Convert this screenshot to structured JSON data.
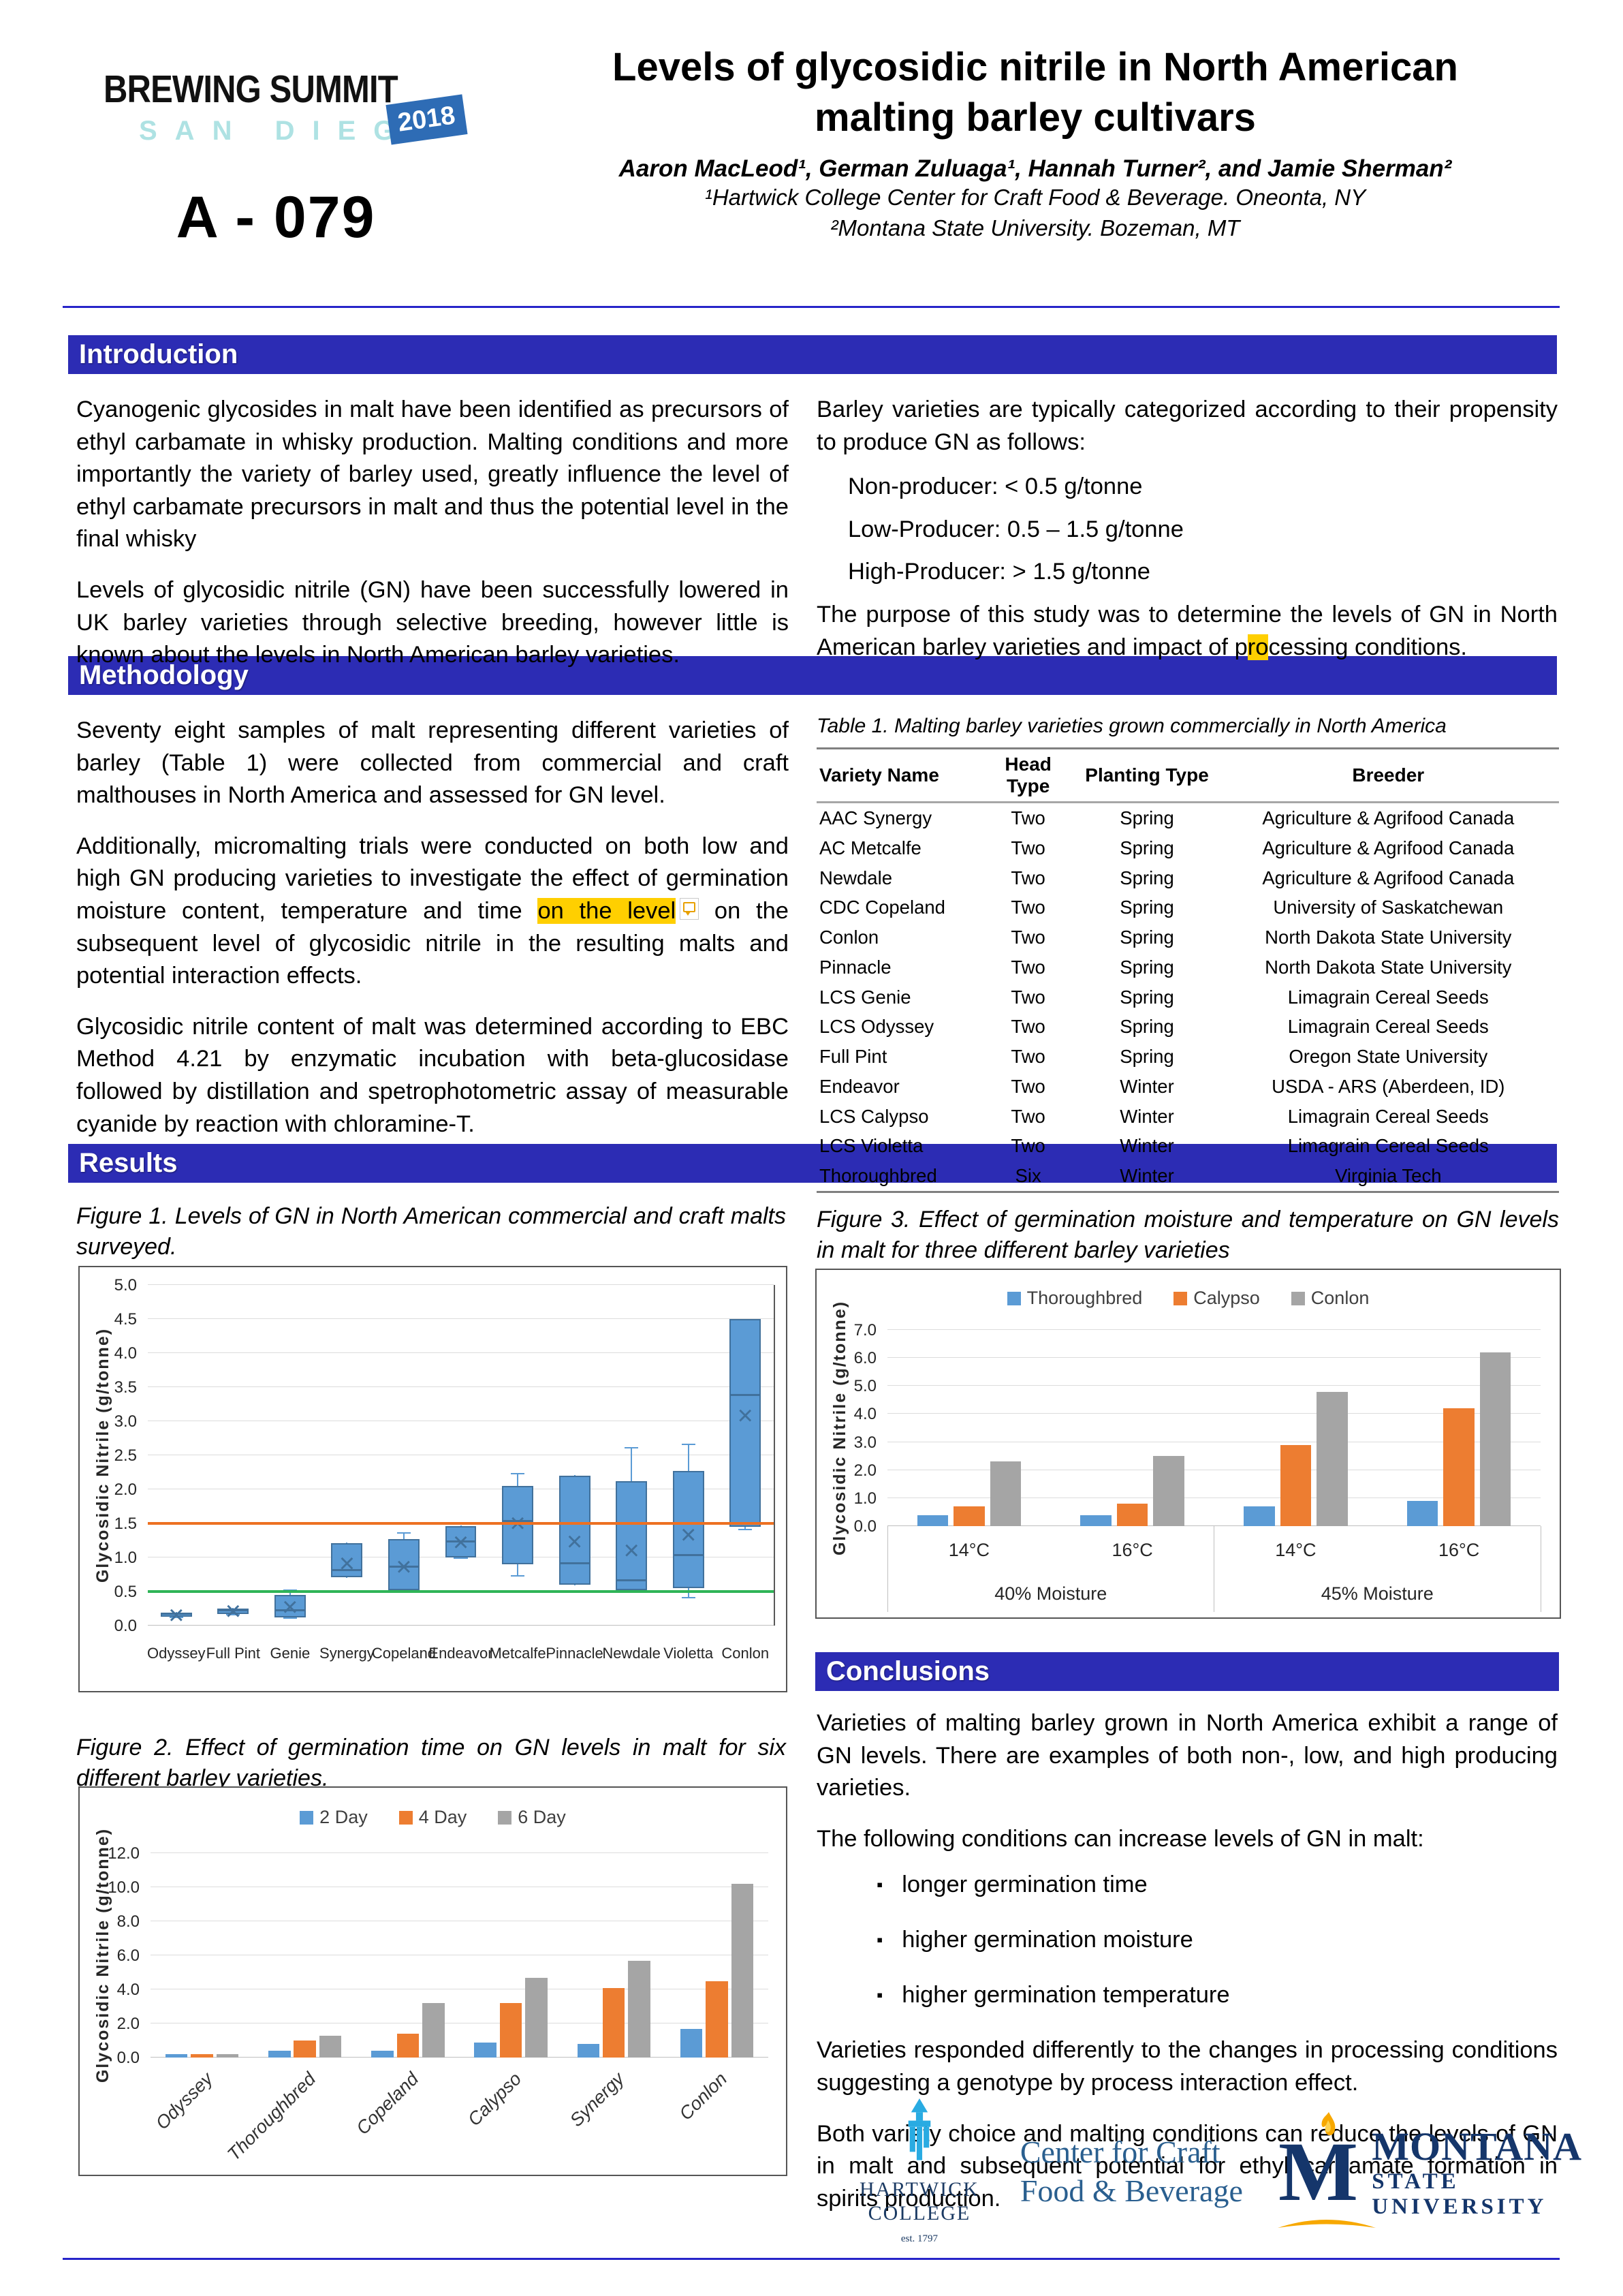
{
  "header": {
    "logo_line1": "BREWING SUMMIT",
    "logo_line2": "SAN DIEGO",
    "logo_year": "2018",
    "poster_number": "A - 079",
    "title_line1": "Levels of glycosidic nitrile in North American",
    "title_line2": "malting barley cultivars",
    "authors": "Aaron MacLeod¹, German Zuluaga¹, Hannah Turner², and Jamie Sherman²",
    "affiliation1": "¹Hartwick College Center for Craft Food & Beverage. Oneonta, NY",
    "affiliation2": "²Montana State University. Bozeman, MT"
  },
  "sections": {
    "introduction": "Introduction",
    "methodology": "Methodology",
    "results": "Results",
    "conclusions": "Conclusions"
  },
  "introduction": {
    "left_p1": "Cyanogenic glycosides in malt have been identified as precursors of ethyl carbamate in whisky production. Malting conditions and more importantly the variety of barley used, greatly influence the level of ethyl carbamate precursors in malt and thus the potential level in the final whisky",
    "left_p2": "Levels of glycosidic nitrile (GN) have been successfully lowered in UK barley varieties through selective breeding, however little is known about the levels in North American barley varieties.",
    "right_p1": "Barley varieties are typically categorized according to their propensity to produce GN as follows:",
    "right_items": [
      "Non-producer: < 0.5 g/tonne",
      "Low-Producer: 0.5 – 1.5 g/tonne",
      "High-Producer: > 1.5 g/tonne"
    ],
    "right_p2_pre": "The purpose of this study was to determine the levels of GN in North American barley varieties and impact of p",
    "right_p2_hl": "ro",
    "right_p2_post": "cessing conditions."
  },
  "methodology": {
    "p1": "Seventy eight samples of malt representing different varieties of barley (Table 1) were collected from commercial and craft malthouses in North America and assessed for GN level.",
    "p2_pre": "Additionally, micromalting trials were conducted on both low and high GN producing varieties to investigate the effect of germination moisture content, temperature and time ",
    "p2_hl": "on the level",
    "p2_post": " on the subsequent level of glycosidic nitrile in the resulting malts and potential interaction effects.",
    "p3": "Glycosidic nitrile content of malt was determined according to EBC Method 4.21 by enzymatic incubation with beta-glucosidase followed by distillation and spetrophotometric assay of measurable cyanide by reaction with chloramine-T."
  },
  "table1": {
    "caption": "Table 1. Malting barley varieties grown commercially in North America",
    "headers": [
      "Variety Name",
      "Head Type",
      "Planting Type",
      "Breeder"
    ],
    "rows": [
      [
        "AAC Synergy",
        "Two",
        "Spring",
        "Agriculture & Agrifood Canada"
      ],
      [
        "AC Metcalfe",
        "Two",
        "Spring",
        "Agriculture & Agrifood Canada"
      ],
      [
        "Newdale",
        "Two",
        "Spring",
        "Agriculture & Agrifood Canada"
      ],
      [
        "CDC Copeland",
        "Two",
        "Spring",
        "University of Saskatchewan"
      ],
      [
        "Conlon",
        "Two",
        "Spring",
        "North Dakota State University"
      ],
      [
        "Pinnacle",
        "Two",
        "Spring",
        "North Dakota State University"
      ],
      [
        "LCS Genie",
        "Two",
        "Spring",
        "Limagrain Cereal Seeds"
      ],
      [
        "LCS Odyssey",
        "Two",
        "Spring",
        "Limagrain Cereal Seeds"
      ],
      [
        "Full Pint",
        "Two",
        "Spring",
        "Oregon State University"
      ],
      [
        "Endeavor",
        "Two",
        "Winter",
        "USDA - ARS (Aberdeen, ID)"
      ],
      [
        "LCS Calypso",
        "Two",
        "Winter",
        "Limagrain Cereal Seeds"
      ],
      [
        "LCS Violetta",
        "Two",
        "Winter",
        "Limagrain Cereal Seeds"
      ],
      [
        "Thoroughbred",
        "Six",
        "Winter",
        "Virginia Tech"
      ]
    ]
  },
  "figures": {
    "fig1_caption": "Figure 1. Levels of GN in North American commercial and craft malts surveyed.",
    "fig2_caption": "Figure 2. Effect of germination time on GN levels in malt for six different barley varieties.",
    "fig3_caption": "Figure 3. Effect of germination moisture and temperature on GN levels in malt for three different barley varieties"
  },
  "chart_data": [
    {
      "id": "fig1",
      "type": "boxplot",
      "title": "Levels of GN in North American commercial and craft malts surveyed",
      "ylabel": "Glycosidic Nitrile (g/tonne)",
      "ylim": [
        0,
        5.0
      ],
      "ytick_step": 0.5,
      "grid": true,
      "legend_position": "none",
      "reference_lines": [
        {
          "y": 1.5,
          "color": "#ED7022",
          "meaning": "high-producer threshold"
        },
        {
          "y": 0.5,
          "color": "#2FB457",
          "meaning": "non-producer threshold"
        }
      ],
      "categories": [
        "Odyssey",
        "Full Pint",
        "Genie",
        "Synergy",
        "Copeland",
        "Endeavor",
        "Metcalfe",
        "Pinnacle",
        "Newdale",
        "Violetta",
        "Conlon"
      ],
      "boxes": [
        {
          "lo": 0.11,
          "q1": 0.13,
          "med": 0.16,
          "q3": 0.19,
          "hi": 0.2,
          "mean": 0.15
        },
        {
          "lo": 0.15,
          "q1": 0.17,
          "med": 0.21,
          "q3": 0.25,
          "hi": 0.26,
          "mean": 0.21
        },
        {
          "lo": 0.1,
          "q1": 0.12,
          "med": 0.21,
          "q3": 0.45,
          "hi": 0.51,
          "mean": 0.27
        },
        {
          "lo": 0.7,
          "q1": 0.71,
          "med": 0.8,
          "q3": 1.21,
          "hi": 1.22,
          "mean": 0.91
        },
        {
          "lo": 0.48,
          "q1": 0.52,
          "med": 0.85,
          "q3": 1.27,
          "hi": 1.35,
          "mean": 0.86
        },
        {
          "lo": 0.98,
          "q1": 1.0,
          "med": 1.22,
          "q3": 1.46,
          "hi": 1.47,
          "mean": 1.22
        },
        {
          "lo": 0.72,
          "q1": 0.9,
          "med": 1.52,
          "q3": 2.05,
          "hi": 2.22,
          "mean": 1.5
        },
        {
          "lo": 0.59,
          "q1": 0.6,
          "med": 0.9,
          "q3": 2.2,
          "hi": 2.21,
          "mean": 1.23
        },
        {
          "lo": 0.51,
          "q1": 0.52,
          "med": 0.65,
          "q3": 2.12,
          "hi": 2.6,
          "mean": 1.1
        },
        {
          "lo": 0.4,
          "q1": 0.55,
          "med": 1.02,
          "q3": 2.27,
          "hi": 2.65,
          "mean": 1.33
        },
        {
          "lo": 1.4,
          "q1": 1.45,
          "med": 3.37,
          "q3": 4.5,
          "hi": 4.5,
          "mean": 3.08
        }
      ]
    },
    {
      "id": "fig2",
      "type": "bar",
      "title": "Effect of germination time on GN levels in malt for six barley varieties",
      "ylabel": "Glycosidic Nitrile (g/tonne)",
      "ylim": [
        0,
        12
      ],
      "ytick_step": 2,
      "grid": true,
      "legend_position": "top",
      "categories": [
        "Odyssey",
        "Thoroughbred",
        "Copeland",
        "Calypso",
        "Synergy",
        "Conlon"
      ],
      "series": [
        {
          "name": "2 Day",
          "color": "#5B9BD5",
          "values": [
            0.2,
            0.4,
            0.4,
            0.9,
            0.8,
            1.7
          ]
        },
        {
          "name": "4 Day",
          "color": "#ED7D31",
          "values": [
            0.2,
            1.0,
            1.4,
            3.2,
            4.1,
            4.5
          ]
        },
        {
          "name": "6 Day",
          "color": "#A5A5A5",
          "values": [
            0.2,
            1.3,
            3.2,
            4.7,
            5.7,
            10.2
          ]
        }
      ]
    },
    {
      "id": "fig3",
      "type": "bar",
      "title": "Effect of germination moisture and temperature on GN levels in malt for three barley varieties",
      "ylabel": "Glycosidic Nitrile (g/tonne)",
      "ylim": [
        0,
        7
      ],
      "ytick_step": 1,
      "grid": true,
      "legend_position": "top",
      "categories": [
        "14°C",
        "16°C",
        "14°C",
        "16°C"
      ],
      "category_groups": [
        {
          "label": "40% Moisture",
          "span": [
            0,
            1
          ]
        },
        {
          "label": "45% Moisture",
          "span": [
            2,
            3
          ]
        }
      ],
      "series": [
        {
          "name": "Thoroughbred",
          "color": "#5B9BD5",
          "values": [
            0.4,
            0.4,
            0.7,
            0.9
          ]
        },
        {
          "name": "Calypso",
          "color": "#ED7D31",
          "values": [
            0.7,
            0.8,
            2.9,
            4.2
          ]
        },
        {
          "name": "Conlon",
          "color": "#A5A5A5",
          "values": [
            2.3,
            2.5,
            4.8,
            6.2
          ]
        }
      ]
    }
  ],
  "conclusions": {
    "p1": "Varieties of malting barley grown in North America exhibit a range of GN levels.  There are examples of both non-, low, and high producing varieties.",
    "p2": "The following conditions can increase levels of GN in malt:",
    "bullets": [
      "longer germination time",
      "higher germination moisture",
      "higher germination temperature"
    ],
    "p3": "Varieties responded differently to the changes in processing conditions suggesting a genotype by process interaction effect.",
    "p4": "Both variety choice and malting conditions can reduce the levels of GN in malt and subsequent potential for ethyl carbamate formation in spirits production."
  },
  "footer": {
    "hartwick_line1": "HARTWICK",
    "hartwick_line2": "COLLEGE",
    "hartwick_est": "est. 1797",
    "center_line1": "Center for Craft",
    "center_line2": "Food & Beverage",
    "msu_m": "M",
    "msu_line1": "MONTANA",
    "msu_line2": "STATE UNIVERSITY"
  },
  "colors": {
    "section_bar_blue": "#2C2CB4",
    "rule_blue": "#2724C9",
    "chart_blue": "#5B9BD5",
    "chart_blue_border": "#41719C",
    "chart_orange": "#ED7D31",
    "chart_gray": "#A5A5A5",
    "ref_line_orange": "#ED7022",
    "ref_line_green": "#2FB457",
    "highlight_yellow": "#FFCF00",
    "logo_teal": "#AEE2E3",
    "logo_year_blue": "#2E6CB5",
    "hartwick_blue": "#29ABE2",
    "msu_navy": "#15366B",
    "msu_gold": "#F7A800"
  }
}
